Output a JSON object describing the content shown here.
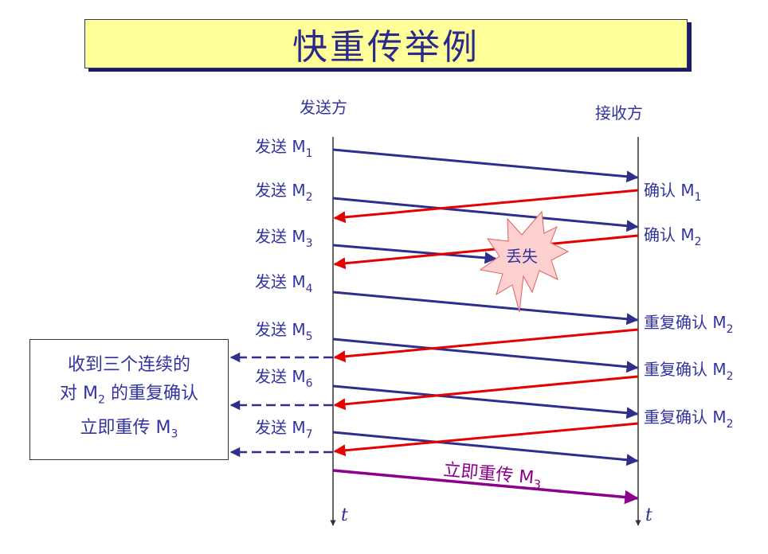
{
  "title": "快重传举例",
  "sender": "发送方",
  "receiver": "接收方",
  "time_label": "t",
  "send_prefix": "发送 M",
  "sends": [
    "1",
    "2",
    "3",
    "4",
    "5",
    "6",
    "7"
  ],
  "acks": [
    {
      "text": "确认 M",
      "sub": "1"
    },
    {
      "text": "确认 M",
      "sub": "2"
    },
    {
      "text": "重复确认 M",
      "sub": "2"
    },
    {
      "text": "重复确认 M",
      "sub": "2"
    },
    {
      "text": "重复确认 M",
      "sub": "2"
    }
  ],
  "lost": "丢失",
  "retransmit": {
    "text": "立即重传 M",
    "sub": "3"
  },
  "note": {
    "line1": "收到三个连续的",
    "line2_a": "对 M",
    "line2_sub": "2",
    "line2_b": " 的重复确认",
    "line3": "立即重传 M",
    "line3_sub": "3"
  },
  "colors": {
    "send": "#2e2e8c",
    "ack": "#e60000",
    "retransmit": "#8c008c",
    "title_bg": "#ffff99",
    "burst": "#ffd0d0"
  }
}
